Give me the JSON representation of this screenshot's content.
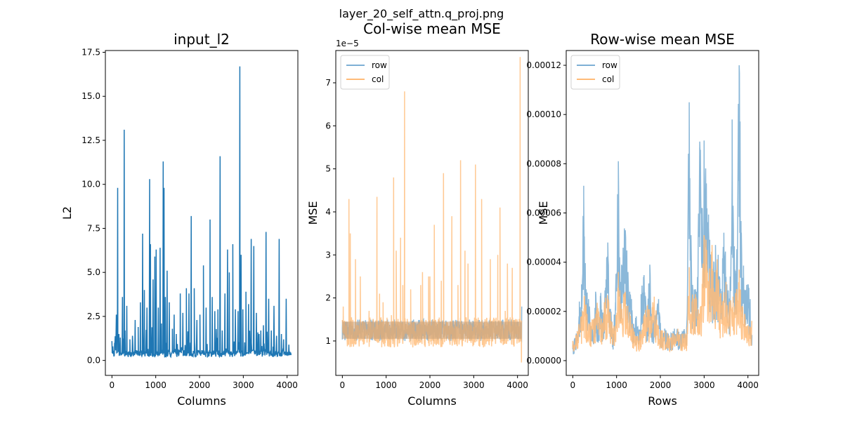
{
  "figure": {
    "suptitle": "layer_20_self_attn.q_proj.png"
  },
  "colors": {
    "row": "#7eb0d5",
    "col": "#ffbb78",
    "l2": "#1f77b4",
    "overlap": "#c6a07a"
  },
  "chart_data": [
    {
      "type": "line",
      "title": "input_l2",
      "xlabel": "Columns",
      "ylabel": "L2",
      "xlim": [
        -150,
        4246
      ],
      "ylim": [
        -0.85,
        17.6
      ],
      "xticks": [
        0,
        1000,
        2000,
        3000,
        4000
      ],
      "xtick_labels": [
        "0",
        "1000",
        "2000",
        "3000",
        "4000"
      ],
      "yticks": [
        0,
        2.5,
        5,
        7.5,
        10,
        12.5,
        15,
        17.5
      ],
      "ytick_labels": [
        "0.0",
        "2.5",
        "5.0",
        "7.5",
        "10.0",
        "12.5",
        "15.0",
        "17.5"
      ],
      "baseline": 0.2,
      "series": [
        {
          "color": "#1f77b4",
          "x": [
            0,
            20,
            60,
            100,
            130,
            160,
            190,
            240,
            280,
            300,
            340,
            410,
            470,
            530,
            600,
            650,
            700,
            740,
            800,
            860,
            880,
            940,
            980,
            1010,
            1060,
            1100,
            1130,
            1170,
            1190,
            1220,
            1260,
            1310,
            1380,
            1420,
            1470,
            1560,
            1620,
            1700,
            1760,
            1810,
            1880,
            1940,
            2010,
            2090,
            2150,
            2240,
            2290,
            2350,
            2420,
            2470,
            2520,
            2580,
            2640,
            2680,
            2760,
            2820,
            2880,
            2920,
            2950,
            2990,
            3060,
            3120,
            3180,
            3240,
            3300,
            3360,
            3400,
            3460,
            3520,
            3580,
            3640,
            3700,
            3760,
            3820,
            3870,
            3920,
            3980,
            4040,
            4090
          ],
          "y": [
            1.1,
            0.8,
            1.0,
            2.6,
            9.8,
            1.5,
            1.3,
            3.6,
            13.1,
            1.7,
            3.1,
            1.2,
            1.4,
            2.3,
            1.9,
            3.3,
            7.2,
            4.0,
            3.0,
            10.3,
            6.6,
            4.6,
            5.9,
            6.3,
            3.0,
            6.4,
            2.1,
            11.3,
            9.8,
            3.6,
            5.1,
            3.3,
            1.8,
            2.6,
            1.5,
            3.8,
            2.7,
            4.1,
            3.8,
            8.2,
            4.1,
            2.3,
            2.6,
            5.4,
            3.0,
            8.0,
            3.6,
            2.8,
            2.9,
            11.6,
            1.7,
            3.8,
            6.3,
            5.0,
            6.6,
            2.9,
            2.8,
            16.7,
            6.0,
            2.9,
            3.9,
            3.2,
            6.9,
            6.5,
            2.7,
            1.5,
            1.7,
            2.0,
            7.3,
            3.5,
            1.7,
            3.1,
            1.4,
            6.9,
            1.5,
            1.2,
            3.5,
            0.9,
            0.3
          ]
        }
      ]
    },
    {
      "type": "line",
      "title": "Col-wise mean MSE",
      "xlabel": "Columns",
      "ylabel": "MSE",
      "offset_label": "1e−5",
      "xlim": [
        -150,
        4246
      ],
      "ylim": [
        0.2,
        7.75
      ],
      "xticks": [
        0,
        1000,
        2000,
        3000,
        4000
      ],
      "xtick_labels": [
        "0",
        "1000",
        "2000",
        "3000",
        "4000"
      ],
      "yticks": [
        1,
        2,
        3,
        4,
        5,
        6,
        7
      ],
      "ytick_labels": [
        "1",
        "2",
        "3",
        "4",
        "5",
        "6",
        "7"
      ],
      "legend_position": "top-left",
      "series": [
        {
          "name": "row",
          "color": "#7eb0d5",
          "band": [
            1.0,
            1.5
          ],
          "x": [
            0,
            200,
            420,
            650,
            800,
            1000,
            1150,
            1300,
            1420,
            1600,
            1800,
            2000,
            2150,
            2350,
            2500,
            2650,
            2800,
            3000,
            3200,
            3400,
            3600,
            3800,
            3950,
            4096
          ],
          "y": [
            1.3,
            1.25,
            1.3,
            1.2,
            1.25,
            1.2,
            1.3,
            1.2,
            1.25,
            1.2,
            1.25,
            1.3,
            1.2,
            1.25,
            1.2,
            1.3,
            1.2,
            1.25,
            1.2,
            1.25,
            1.2,
            1.3,
            1.2,
            1.8
          ]
        },
        {
          "name": "col",
          "color": "#ffbb78",
          "band": [
            0.85,
            1.55
          ],
          "x": [
            20,
            150,
            180,
            300,
            410,
            610,
            790,
            850,
            930,
            1120,
            1170,
            1230,
            1330,
            1380,
            1420,
            1560,
            1790,
            1830,
            1970,
            2000,
            2100,
            2260,
            2310,
            2500,
            2640,
            2700,
            2800,
            2870,
            3040,
            3180,
            3380,
            3550,
            3600,
            3720,
            3770,
            3880,
            3990,
            4060,
            4090
          ],
          "y": [
            1.8,
            4.3,
            3.5,
            2.9,
            2.5,
            1.7,
            4.35,
            2.1,
            1.9,
            1.6,
            4.8,
            3.1,
            3.4,
            2.3,
            6.8,
            2.2,
            2.3,
            2.6,
            2.5,
            2.5,
            3.7,
            2.4,
            4.9,
            3.9,
            2.3,
            5.2,
            3.1,
            2.8,
            5.1,
            4.3,
            2.9,
            3.0,
            4.1,
            1.7,
            2.8,
            2.7,
            1.5,
            7.6,
            0.5
          ]
        }
      ]
    },
    {
      "type": "line",
      "title": "Row-wise mean MSE",
      "xlabel": "Rows",
      "ylabel": "MSE",
      "xlim": [
        -150,
        4246
      ],
      "ylim": [
        -6e-06,
        0.000126
      ],
      "xticks": [
        0,
        1000,
        2000,
        3000,
        4000
      ],
      "xtick_labels": [
        "0",
        "1000",
        "2000",
        "3000",
        "4000"
      ],
      "yticks": [
        0,
        2e-05,
        4e-05,
        6e-05,
        8e-05,
        0.0001,
        0.00012
      ],
      "ytick_labels": [
        "0.00000",
        "0.00002",
        "0.00004",
        "0.00006",
        "0.00008",
        "0.00010",
        "0.00012"
      ],
      "legend_position": "top-left",
      "series": [
        {
          "name": "row",
          "color": "#7eb0d5",
          "x": [
            0,
            80,
            150,
            200,
            250,
            300,
            360,
            420,
            480,
            520,
            580,
            640,
            700,
            760,
            800,
            860,
            920,
            980,
            1040,
            1070,
            1100,
            1150,
            1200,
            1260,
            1300,
            1340,
            1400,
            1450,
            1500,
            1560,
            1620,
            1700,
            1760,
            1800,
            1850,
            1900,
            1960,
            2020,
            2100,
            2180,
            2250,
            2320,
            2400,
            2480,
            2550,
            2600,
            2660,
            2700,
            2740,
            2800,
            2850,
            2900,
            2950,
            3000,
            3050,
            3100,
            3150,
            3200,
            3260,
            3320,
            3380,
            3450,
            3520,
            3580,
            3640,
            3700,
            3740,
            3800,
            3850,
            3900,
            3950,
            4000,
            4050,
            4096
          ],
          "y": [
            6e-06,
            1.1e-05,
            2.4e-05,
            3.1e-05,
            6.7e-05,
            2.9e-05,
            2.5e-05,
            1.4e-05,
            1.7e-05,
            2.8e-05,
            1.3e-05,
            2.7e-05,
            1.8e-05,
            3.3e-05,
            4.8e-05,
            2.1e-05,
            1.1e-05,
            2.9e-05,
            8.1e-05,
            4.2e-05,
            3.2e-05,
            4.5e-05,
            5.3e-05,
            3.6e-05,
            2.8e-05,
            2.5e-05,
            1.2e-05,
            1.8e-05,
            1.2e-05,
            2.7e-05,
            3.3e-05,
            1.8e-05,
            3.9e-05,
            1.7e-05,
            1.6e-05,
            1.9e-05,
            2.3e-05,
            1.2e-05,
            1.3e-05,
            1.1e-05,
            1.1e-05,
            1.3e-05,
            1.2e-05,
            1.1e-05,
            1.2e-05,
            1.3e-05,
            0.000105,
            5.1e-05,
            2.7e-05,
            2.9e-05,
            3.1e-05,
            8.9e-05,
            6.2e-05,
            8.2e-05,
            7.2e-05,
            5.4e-05,
            4.2e-05,
            3.2e-05,
            4.7e-05,
            4.3e-05,
            2.7e-05,
            5.2e-05,
            3.1e-05,
            2.4e-05,
            9.8e-05,
            3.7e-05,
            3.8e-05,
            0.00012,
            5.2e-05,
            3.6e-05,
            2.6e-05,
            3.1e-05,
            2.5e-05,
            1.4e-05
          ]
        },
        {
          "name": "col",
          "color": "#ffbb78",
          "x": [
            0,
            100,
            200,
            260,
            320,
            400,
            480,
            560,
            640,
            720,
            800,
            880,
            960,
            1040,
            1120,
            1200,
            1300,
            1380,
            1460,
            1540,
            1620,
            1700,
            1780,
            1860,
            1940,
            2020,
            2100,
            2200,
            2300,
            2400,
            2500,
            2600,
            2660,
            2720,
            2800,
            2880,
            2940,
            3000,
            3060,
            3120,
            3180,
            3240,
            3300,
            3360,
            3420,
            3500,
            3580,
            3660,
            3740,
            3800,
            3860,
            3920,
            3980,
            4040,
            4096
          ],
          "y": [
            8e-06,
            1.2e-05,
            1.8e-05,
            2.6e-05,
            1.9e-05,
            1.5e-05,
            1.7e-05,
            2.2e-05,
            1.4e-05,
            2.3e-05,
            2.5e-05,
            1.6e-05,
            1.2e-05,
            3.6e-05,
            2.1e-05,
            2.8e-05,
            1.8e-05,
            1.2e-05,
            9e-06,
            1.1e-05,
            1.7e-05,
            2.2e-05,
            1.8e-05,
            2.6e-05,
            1.4e-05,
            1.2e-05,
            1.1e-05,
            1e-05,
            1.1e-05,
            1.2e-05,
            1e-05,
            1.1e-05,
            3.8e-05,
            2.4e-05,
            2.7e-05,
            1.8e-05,
            2.2e-05,
            5.1e-05,
            4.5e-05,
            3.4e-05,
            4.7e-05,
            2.8e-05,
            3.9e-05,
            2.6e-05,
            2.4e-05,
            3.2e-05,
            2.2e-05,
            2.6e-05,
            2.9e-05,
            3.7e-05,
            2.1e-05,
            1.8e-05,
            1.4e-05,
            1.3e-05,
            1.5e-05
          ]
        }
      ]
    }
  ]
}
